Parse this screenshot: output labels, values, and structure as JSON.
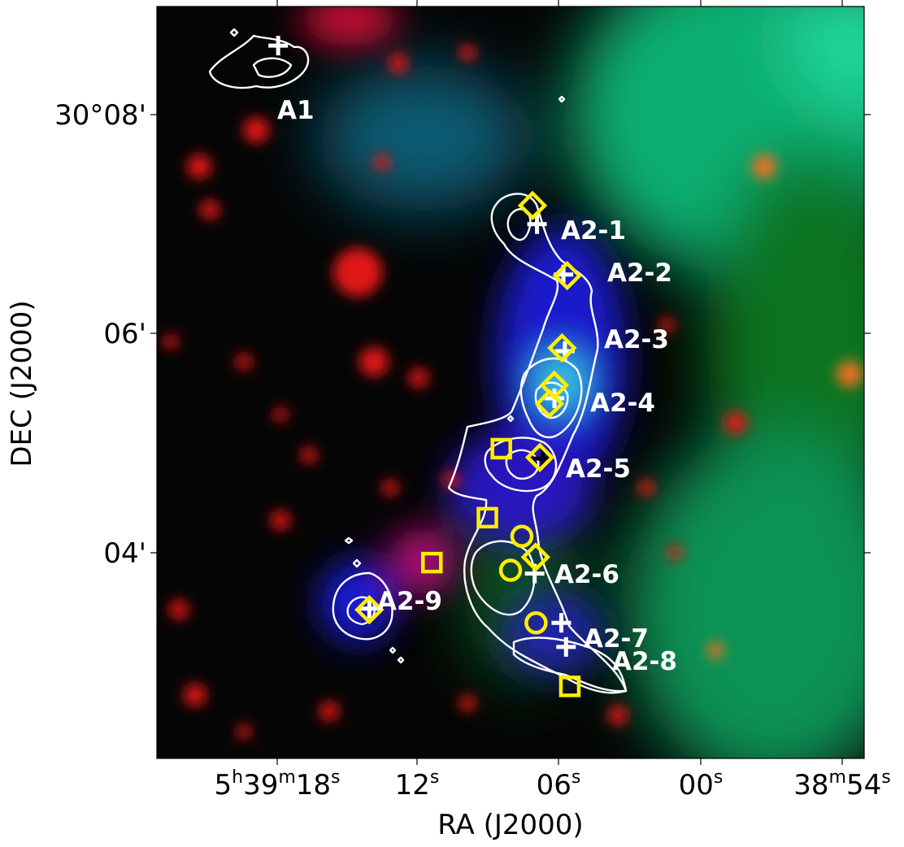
{
  "chart_data": {
    "type": "scatter",
    "xlabel": "RA (J2000)",
    "ylabel": "DEC (J2000)",
    "x_ticks": [
      {
        "value": "5h39m18s",
        "parts": [
          "5",
          "h",
          "39",
          "m",
          "18",
          "s"
        ]
      },
      {
        "value": "12s",
        "parts": [
          "12",
          "s"
        ]
      },
      {
        "value": "06s",
        "parts": [
          "06",
          "s"
        ]
      },
      {
        "value": "00s",
        "parts": [
          "00",
          "s"
        ]
      },
      {
        "value": "38m54s",
        "parts": [
          "38",
          "m",
          "54",
          "s"
        ]
      }
    ],
    "y_ticks": [
      "30°08'",
      "06'",
      "04'"
    ],
    "grid": false,
    "colors": {
      "contour": "#ffffff",
      "diamond": "#ffee00",
      "circle": "#ffee00",
      "square": "#ffee00",
      "plus_white": "#ffffff",
      "plus_black": "#000000"
    },
    "sources": [
      {
        "label": "A1",
        "ra": 17.96,
        "dec": 8.63
      },
      {
        "label": "A2-1",
        "ra": 7.0,
        "dec": 7.0
      },
      {
        "label": "A2-2",
        "ra": 5.88,
        "dec": 6.54
      },
      {
        "label": "A2-3",
        "ra": 5.82,
        "dec": 5.84
      },
      {
        "label": "A2-4",
        "ra": 6.26,
        "dec": 5.41
      },
      {
        "label": "A2-5",
        "ra": 6.75,
        "dec": 4.86
      },
      {
        "label": "A2-6",
        "ra": 7.1,
        "dec": 3.81
      },
      {
        "label": "A2-7",
        "ra": 5.97,
        "dec": 3.36
      },
      {
        "label": "A2-8",
        "ra": 5.77,
        "dec": 3.14
      },
      {
        "label": "A2-9",
        "ra": 14.1,
        "dec": 3.49
      }
    ],
    "plus_markers": [
      {
        "ra": 17.96,
        "dec": 8.63,
        "color": "white"
      },
      {
        "ra": 7.0,
        "dec": 7.0,
        "color": "white"
      },
      {
        "ra": 5.88,
        "dec": 6.54,
        "color": "white"
      },
      {
        "ra": 5.82,
        "dec": 5.84,
        "color": "white"
      },
      {
        "ra": 6.26,
        "dec": 5.41,
        "color": "white"
      },
      {
        "ra": 6.75,
        "dec": 4.86,
        "color": "black"
      },
      {
        "ra": 7.1,
        "dec": 3.81,
        "color": "white"
      },
      {
        "ra": 5.97,
        "dec": 3.36,
        "color": "white"
      },
      {
        "ra": 5.77,
        "dec": 3.14,
        "color": "white"
      },
      {
        "ra": 14.1,
        "dec": 3.49,
        "color": "white"
      }
    ],
    "diamonds": [
      {
        "ra": 7.19,
        "dec": 7.17
      },
      {
        "ra": 5.72,
        "dec": 6.53
      },
      {
        "ra": 5.94,
        "dec": 5.87
      },
      {
        "ra": 6.27,
        "dec": 5.53
      },
      {
        "ra": 6.47,
        "dec": 5.36
      },
      {
        "ra": 6.88,
        "dec": 4.87
      },
      {
        "ra": 7.06,
        "dec": 3.96
      },
      {
        "ra": 14.1,
        "dec": 3.48
      }
    ],
    "circles": [
      {
        "ra": 7.64,
        "dec": 4.15
      },
      {
        "ra": 8.12,
        "dec": 3.84
      },
      {
        "ra": 7.04,
        "dec": 3.36
      }
    ],
    "squares": [
      {
        "ra": 8.51,
        "dec": 4.95
      },
      {
        "ra": 9.1,
        "dec": 4.32
      },
      {
        "ra": 11.45,
        "dec": 3.91
      },
      {
        "ra": 5.61,
        "dec": 2.78
      }
    ]
  }
}
